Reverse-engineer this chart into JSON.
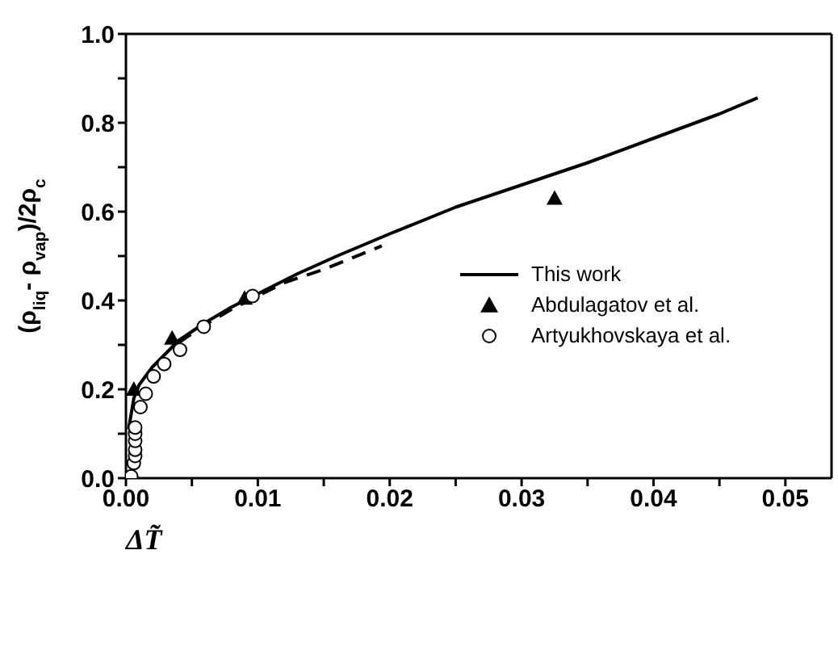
{
  "chart_data": {
    "type": "line",
    "xlabel": "ΔT̃",
    "ylabel": "(ρ$_{liq}$- ρ$_{vap}$)/2ρ$_{c}$",
    "xlim": [
      0,
      0.0535
    ],
    "ylim": [
      0,
      1
    ],
    "xticks": [
      {
        "value": 0,
        "label": "0.00"
      },
      {
        "value": 0.005,
        "label": null
      },
      {
        "value": 0.01,
        "label": "0.01"
      },
      {
        "value": 0.015,
        "label": null
      },
      {
        "value": 0.02,
        "label": "0.02"
      },
      {
        "value": 0.025,
        "label": null
      },
      {
        "value": 0.03,
        "label": "0.03"
      },
      {
        "value": 0.035,
        "label": null
      },
      {
        "value": 0.04,
        "label": "0.04"
      },
      {
        "value": 0.045,
        "label": null
      },
      {
        "value": 0.05,
        "label": "0.05"
      }
    ],
    "yticks": [
      {
        "value": 0,
        "label": "0.0"
      },
      {
        "value": 0.1,
        "label": null
      },
      {
        "value": 0.2,
        "label": "0.2"
      },
      {
        "value": 0.3,
        "label": null
      },
      {
        "value": 0.4,
        "label": "0.4"
      },
      {
        "value": 0.5,
        "label": null
      },
      {
        "value": 0.6,
        "label": "0.6"
      },
      {
        "value": 0.7,
        "label": null
      },
      {
        "value": 0.8,
        "label": "0.8"
      },
      {
        "value": 0.9,
        "label": null
      },
      {
        "value": 1,
        "label": "1.0"
      }
    ],
    "grid": false,
    "legend": "right",
    "series": [
      {
        "name": "This work",
        "color": "#000000",
        "line_style": "solid",
        "marker": "none",
        "x": [
          0.0002,
          0.0006,
          0.001,
          0.002,
          0.003,
          0.004,
          0.006,
          0.008,
          0.01,
          0.013,
          0.016,
          0.02,
          0.025,
          0.03,
          0.035,
          0.04,
          0.045,
          0.0479
        ],
        "values": [
          0.11,
          0.18,
          0.21,
          0.25,
          0.28,
          0.31,
          0.35,
          0.385,
          0.415,
          0.46,
          0.5,
          0.55,
          0.61,
          0.66,
          0.71,
          0.765,
          0.82,
          0.856
        ]
      },
      {
        "name": "Abdulagatov et al.",
        "type": "scatter",
        "color": "#000000",
        "marker": "triangle",
        "x": [
          0.0006,
          0.0035,
          0.009,
          0.0325
        ],
        "values": [
          0.2,
          0.315,
          0.405,
          0.63
        ]
      },
      {
        "name": "Artyukhovskaya et al.",
        "type": "scatter",
        "color": "#000000",
        "marker": "circle",
        "x": [
          0.0004,
          0.0006,
          0.0007,
          0.0007,
          0.0007,
          0.0007,
          0.0007,
          0.0011,
          0.0015,
          0.0021,
          0.0029,
          0.0041,
          0.0059,
          0.0096
        ],
        "values": [
          0.004,
          0.034,
          0.05,
          0.064,
          0.084,
          0.1,
          0.114,
          0.16,
          0.19,
          0.229,
          0.257,
          0.289,
          0.341,
          0.41
        ]
      },
      {
        "color": "#000000",
        "line_style": "dashed",
        "marker": "none",
        "x": [
          0.004,
          0.006,
          0.008,
          0.01,
          0.012,
          0.015,
          0.0194
        ],
        "values": [
          0.305,
          0.345,
          0.38,
          0.41,
          0.44,
          0.47,
          0.523
        ]
      }
    ]
  }
}
